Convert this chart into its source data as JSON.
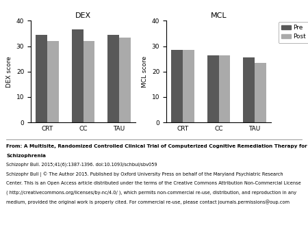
{
  "dex_title": "DEX",
  "mcl_title": "MCL",
  "categories": [
    "CRT",
    "CC",
    "TAU"
  ],
  "dex_pre": [
    34.5,
    36.5,
    34.5
  ],
  "dex_post": [
    32.0,
    32.0,
    33.5
  ],
  "mcl_pre": [
    28.5,
    26.5,
    25.5
  ],
  "mcl_post": [
    28.5,
    26.5,
    23.5
  ],
  "dex_ylabel": "DEX score",
  "mcl_ylabel": "MCL score",
  "ylim": [
    0,
    40
  ],
  "yticks": [
    0,
    10,
    20,
    30,
    40
  ],
  "color_pre": "#595959",
  "color_post": "#aaaaaa",
  "bar_width": 0.32,
  "legend_labels": [
    "Pre",
    "Post"
  ],
  "background_color": "#ffffff",
  "caption_line1": "From: A Multisite, Randomized Controlled Clinical Trial of Computerized Cognitive Remediation Therapy for",
  "caption_line2": "Schizophrenia",
  "caption_line3": "Schizophr Bull. 2015;41(6):1387-1396. doi:10.1093/schbul/sbv059",
  "caption_line4": "Schizophr Bull | © The Author 2015. Published by Oxford University Press on behalf of the Maryland Psychiatric Research",
  "caption_line5": "Center. This is an Open Access article distributed under the terms of the Creative Commons Attribution Non-Commercial License",
  "caption_line6": "( http://creativecommons.org/licenses/by-nc/4.0/ ), which permits non-commercial re-use, distribution, and reproduction in any",
  "caption_line7": "medium, provided the original work is properly cited. For commercial re-use, please contact journals.permissions@oup.com"
}
